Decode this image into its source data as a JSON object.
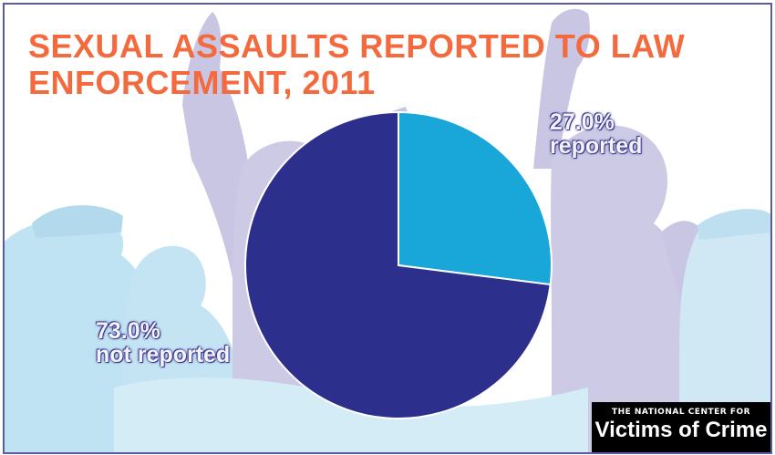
{
  "title_lines": [
    "SEXUAL ASSAULTS REPORTED TO LAW",
    "ENFORCEMENT, 2011"
  ],
  "chart_data": {
    "type": "pie",
    "title": "SEXUAL ASSAULTS REPORTED TO LAW ENFORCEMENT, 2011",
    "slices": [
      {
        "label": "reported",
        "value": 27.0,
        "display": "27.0%",
        "color": "#19a6d9"
      },
      {
        "label": "not reported",
        "value": 73.0,
        "display": "73.0%",
        "color": "#2d2f8c"
      }
    ]
  },
  "logo": {
    "line1": "THE NATIONAL CENTER FOR",
    "line2": "Victims of Crime"
  },
  "colors": {
    "title": "#f26a3d",
    "frame": "#5c5aa3",
    "silhouette_purple": "#c9c6e4",
    "silhouette_blue": "#bfe3f2"
  }
}
